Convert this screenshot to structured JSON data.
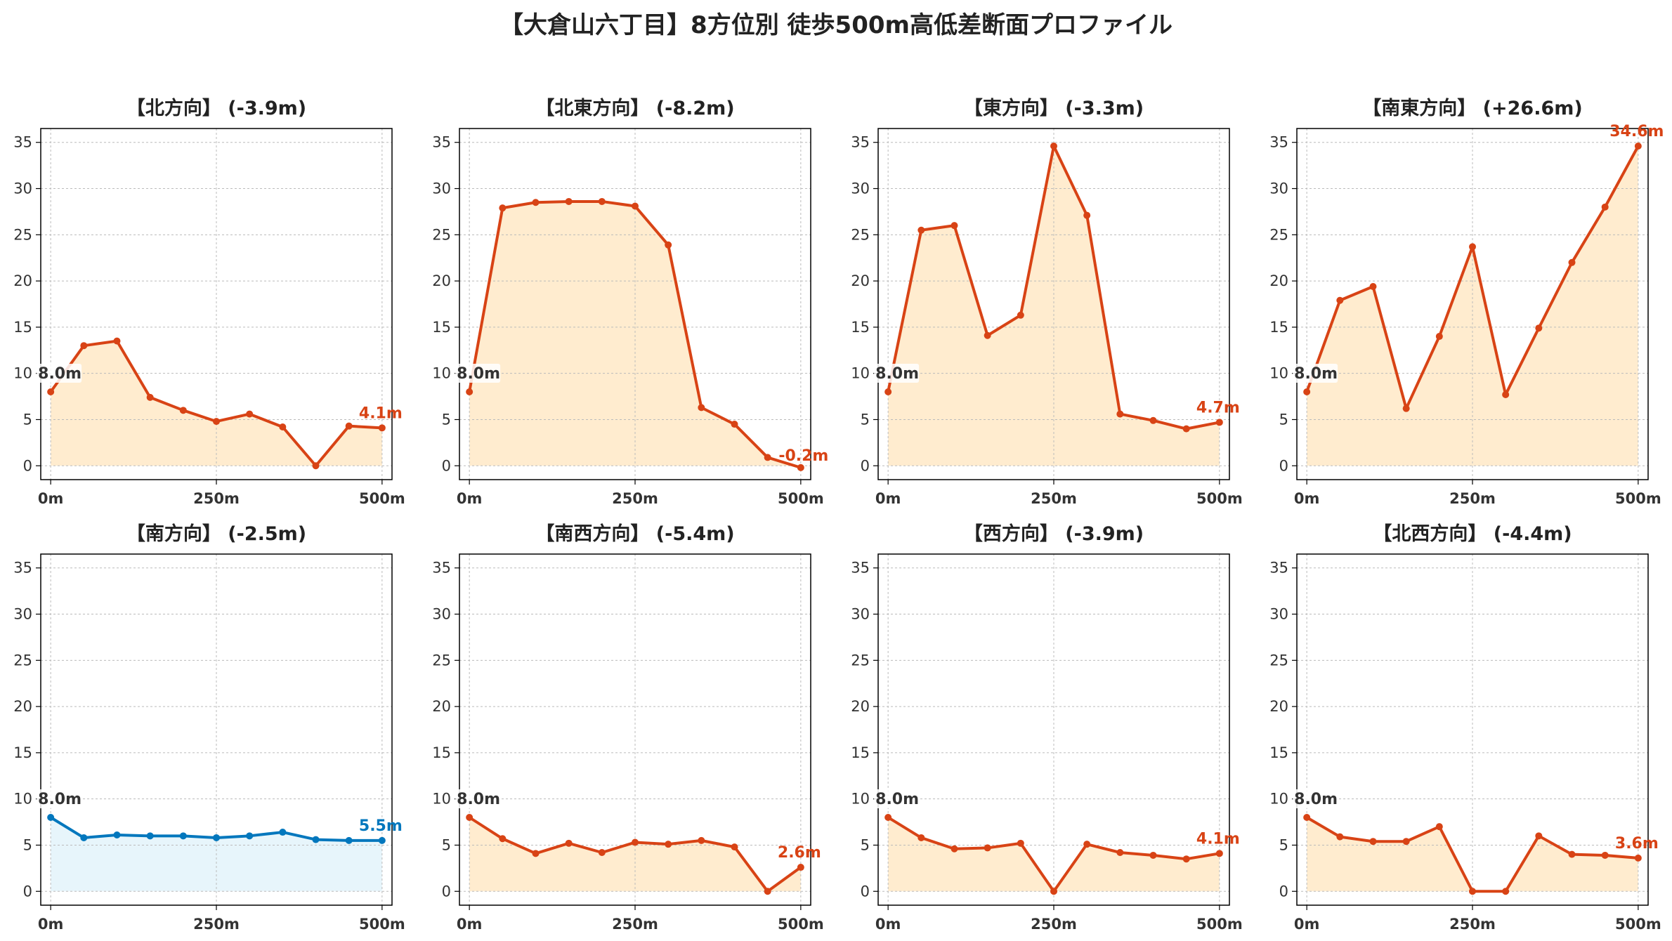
{
  "title": "【大倉山六丁目】8方位別 徒歩500m高低差断面プロファイル",
  "colors": {
    "down_line": "#D84315",
    "down_fill": "#FFEBCC",
    "up_line": "#0277BD",
    "up_fill": "#E6F4FB",
    "start_label": "#333333",
    "grid": "#BBBBBB"
  },
  "chart_data": [
    {
      "type": "area",
      "title": "【北方向】 (-3.9m)",
      "x": [
        0,
        50,
        100,
        150,
        200,
        250,
        300,
        350,
        400,
        450,
        500
      ],
      "y": [
        8.0,
        13.0,
        13.5,
        7.4,
        6.0,
        4.8,
        5.6,
        4.2,
        0.0,
        4.3,
        4.1
      ],
      "start_label": "8.0m",
      "end_label": "4.1m",
      "xticks": [
        "0m",
        "250m",
        "500m"
      ],
      "yticks": [
        "0",
        "5",
        "10",
        "15",
        "20",
        "25",
        "30",
        "35"
      ],
      "ylim": [
        -1.5,
        36.5
      ],
      "xlim": [
        -15,
        515
      ],
      "style": "down",
      "grid": true
    },
    {
      "type": "area",
      "title": "【北東方向】 (-8.2m)",
      "x": [
        0,
        50,
        100,
        150,
        200,
        250,
        300,
        350,
        400,
        450,
        500
      ],
      "y": [
        8.0,
        27.9,
        28.5,
        28.6,
        28.6,
        28.1,
        23.9,
        6.3,
        4.5,
        0.9,
        -0.2
      ],
      "start_label": "8.0m",
      "end_label": "-0.2m",
      "xticks": [
        "0m",
        "250m",
        "500m"
      ],
      "yticks": [
        "0",
        "5",
        "10",
        "15",
        "20",
        "25",
        "30",
        "35"
      ],
      "ylim": [
        -1.5,
        36.5
      ],
      "xlim": [
        -15,
        515
      ],
      "style": "down",
      "grid": true
    },
    {
      "type": "area",
      "title": "【東方向】 (-3.3m)",
      "x": [
        0,
        50,
        100,
        150,
        200,
        250,
        300,
        350,
        400,
        450,
        500
      ],
      "y": [
        8.0,
        25.5,
        26.0,
        14.1,
        16.3,
        34.6,
        27.1,
        5.6,
        4.9,
        4.0,
        4.7
      ],
      "start_label": "8.0m",
      "end_label": "4.7m",
      "xticks": [
        "0m",
        "250m",
        "500m"
      ],
      "yticks": [
        "0",
        "5",
        "10",
        "15",
        "20",
        "25",
        "30",
        "35"
      ],
      "ylim": [
        -1.5,
        36.5
      ],
      "xlim": [
        -15,
        515
      ],
      "style": "down",
      "grid": true
    },
    {
      "type": "area",
      "title": "【南東方向】 (+26.6m)",
      "x": [
        0,
        50,
        100,
        150,
        200,
        250,
        300,
        350,
        400,
        450,
        500
      ],
      "y": [
        8.0,
        17.9,
        19.4,
        6.2,
        14.0,
        23.7,
        7.7,
        14.9,
        22.0,
        28.0,
        34.6
      ],
      "start_label": "8.0m",
      "end_label": "34.6m",
      "xticks": [
        "0m",
        "250m",
        "500m"
      ],
      "yticks": [
        "0",
        "5",
        "10",
        "15",
        "20",
        "25",
        "30",
        "35"
      ],
      "ylim": [
        -1.5,
        36.5
      ],
      "xlim": [
        -15,
        515
      ],
      "style": "down",
      "grid": true
    },
    {
      "type": "area",
      "title": "【南方向】 (-2.5m)",
      "x": [
        0,
        50,
        100,
        150,
        200,
        250,
        300,
        350,
        400,
        450,
        500
      ],
      "y": [
        8.0,
        5.8,
        6.1,
        6.0,
        6.0,
        5.8,
        6.0,
        6.4,
        5.6,
        5.5,
        5.5
      ],
      "start_label": "8.0m",
      "end_label": "5.5m",
      "xticks": [
        "0m",
        "250m",
        "500m"
      ],
      "yticks": [
        "0",
        "5",
        "10",
        "15",
        "20",
        "25",
        "30",
        "35"
      ],
      "ylim": [
        -1.5,
        36.5
      ],
      "xlim": [
        -15,
        515
      ],
      "style": "up",
      "grid": true
    },
    {
      "type": "area",
      "title": "【南西方向】 (-5.4m)",
      "x": [
        0,
        50,
        100,
        150,
        200,
        250,
        300,
        350,
        400,
        450,
        500
      ],
      "y": [
        8.0,
        5.7,
        4.1,
        5.2,
        4.2,
        5.3,
        5.1,
        5.5,
        4.8,
        0.0,
        2.6
      ],
      "start_label": "8.0m",
      "end_label": "2.6m",
      "xticks": [
        "0m",
        "250m",
        "500m"
      ],
      "yticks": [
        "0",
        "5",
        "10",
        "15",
        "20",
        "25",
        "30",
        "35"
      ],
      "ylim": [
        -1.5,
        36.5
      ],
      "xlim": [
        -15,
        515
      ],
      "style": "down",
      "grid": true
    },
    {
      "type": "area",
      "title": "【西方向】 (-3.9m)",
      "x": [
        0,
        50,
        100,
        150,
        200,
        250,
        300,
        350,
        400,
        450,
        500
      ],
      "y": [
        8.0,
        5.8,
        4.6,
        4.7,
        5.2,
        0.0,
        5.1,
        4.2,
        3.9,
        3.5,
        4.1
      ],
      "start_label": "8.0m",
      "end_label": "4.1m",
      "xticks": [
        "0m",
        "250m",
        "500m"
      ],
      "yticks": [
        "0",
        "5",
        "10",
        "15",
        "20",
        "25",
        "30",
        "35"
      ],
      "ylim": [
        -1.5,
        36.5
      ],
      "xlim": [
        -15,
        515
      ],
      "style": "down",
      "grid": true
    },
    {
      "type": "area",
      "title": "【北西方向】 (-4.4m)",
      "x": [
        0,
        50,
        100,
        150,
        200,
        250,
        300,
        350,
        400,
        450,
        500
      ],
      "y": [
        8.0,
        5.9,
        5.4,
        5.4,
        7.0,
        0.0,
        0.0,
        6.0,
        4.0,
        3.9,
        3.6
      ],
      "start_label": "8.0m",
      "end_label": "3.6m",
      "xticks": [
        "0m",
        "250m",
        "500m"
      ],
      "yticks": [
        "0",
        "5",
        "10",
        "15",
        "20",
        "25",
        "30",
        "35"
      ],
      "ylim": [
        -1.5,
        36.5
      ],
      "xlim": [
        -15,
        515
      ],
      "style": "down",
      "grid": true
    }
  ]
}
